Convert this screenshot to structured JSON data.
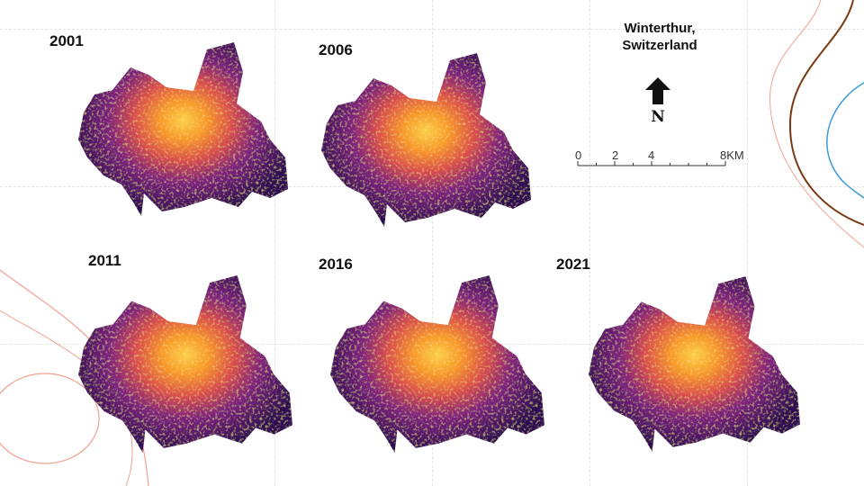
{
  "title_line1": "Winterthur,",
  "title_line2": "Switzerland",
  "north_label": "N",
  "scale_bar": {
    "labels": [
      "0",
      "2",
      "4",
      "8KM"
    ]
  },
  "panels": [
    {
      "year": "2001"
    },
    {
      "year": "2006"
    },
    {
      "year": "2011"
    },
    {
      "year": "2016"
    },
    {
      "year": "2021"
    }
  ],
  "colors": {
    "low": "#2c0f4f",
    "mid_low": "#6b1f7e",
    "mid": "#c13a6b",
    "mid_high": "#f06a28",
    "high": "#fbd04a",
    "deco_brown": "#7a3a12",
    "deco_blue": "#3a9bd6",
    "deco_pink": "#f2a090"
  },
  "colormap": "inferno"
}
